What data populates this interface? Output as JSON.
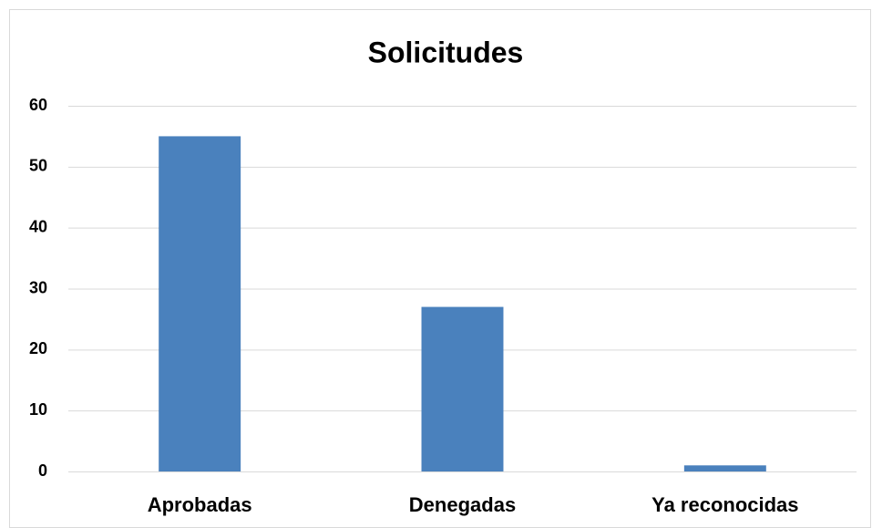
{
  "chart_data": {
    "type": "bar",
    "title": "Solicitudes",
    "categories": [
      "Aprobadas",
      "Denegadas",
      "Ya reconocidas"
    ],
    "values": [
      55,
      27,
      1
    ],
    "color": "#4a81bd",
    "ylim": [
      0,
      60
    ],
    "yticks": [
      0,
      10,
      20,
      30,
      40,
      50,
      60
    ],
    "grid": true
  }
}
